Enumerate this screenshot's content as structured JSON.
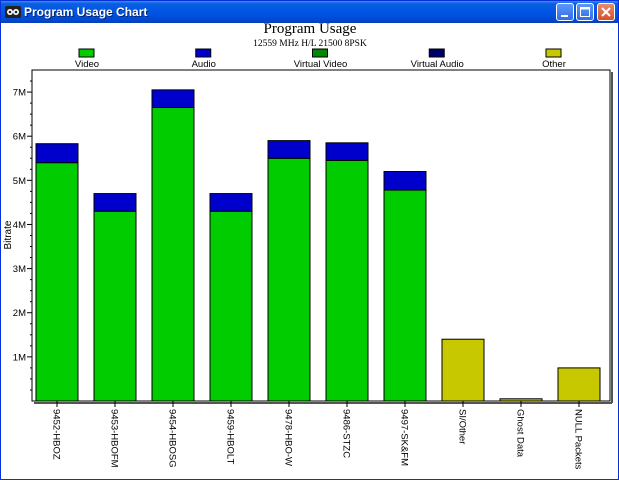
{
  "window": {
    "title": "Program Usage Chart",
    "app_icon": "chart-app-icon"
  },
  "chart_data": {
    "type": "bar",
    "stacked": true,
    "title": "Program Usage",
    "subtitle": "12559 MHz H/L 21500 8PSK",
    "ylabel": "Bitrate",
    "xlabel": "",
    "ylim": [
      0,
      7500000
    ],
    "yticks": [
      1000000,
      2000000,
      3000000,
      4000000,
      5000000,
      6000000,
      7000000
    ],
    "ytick_labels": [
      "1M",
      "2M",
      "3M",
      "4M",
      "5M",
      "6M",
      "7M"
    ],
    "legend_position": "top",
    "legend": [
      {
        "name": "Video",
        "color": "#00cc00"
      },
      {
        "name": "Audio",
        "color": "#0000cc"
      },
      {
        "name": "Virtual Video",
        "color": "#008800"
      },
      {
        "name": "Virtual Audio",
        "color": "#000066"
      },
      {
        "name": "Other",
        "color": "#c8c800"
      }
    ],
    "categories": [
      "9452-HBOZ",
      "9453-HBOFM",
      "9454-HBOSG",
      "9459-HBOLT",
      "9478-HBO-W",
      "9486-STZC",
      "9497-SK&FM",
      "SI/Other",
      "Ghost Data",
      "NULL Packets"
    ],
    "series": [
      {
        "name": "Video",
        "color": "#00cc00",
        "values": [
          5400000,
          4300000,
          6650000,
          4300000,
          5500000,
          5450000,
          4780000,
          0,
          0,
          0
        ]
      },
      {
        "name": "Audio",
        "color": "#0000cc",
        "values": [
          430000,
          400000,
          400000,
          400000,
          400000,
          400000,
          420000,
          0,
          0,
          0
        ]
      },
      {
        "name": "Virtual Video",
        "color": "#008800",
        "values": [
          0,
          0,
          0,
          0,
          0,
          0,
          0,
          0,
          0,
          0
        ]
      },
      {
        "name": "Virtual Audio",
        "color": "#000066",
        "values": [
          0,
          0,
          0,
          0,
          0,
          0,
          0,
          0,
          0,
          0
        ]
      },
      {
        "name": "Other",
        "color": "#c8c800",
        "values": [
          0,
          0,
          0,
          0,
          0,
          0,
          0,
          1400000,
          50000,
          750000
        ]
      }
    ]
  }
}
